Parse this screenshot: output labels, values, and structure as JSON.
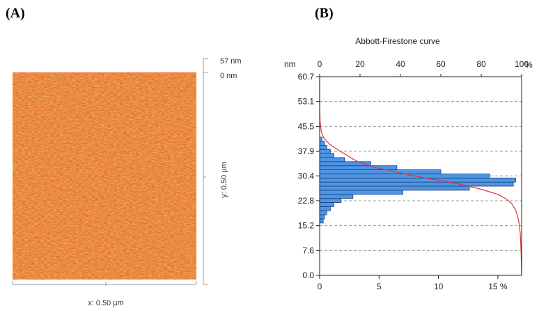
{
  "panels": {
    "a_label": "(A)",
    "b_label": "(B)"
  },
  "afm": {
    "scale_top": "57 nm",
    "scale_bottom": "0 nm",
    "y_label": "y: 0.50 µm",
    "x_label": "x: 0.50 µm",
    "color_base": "#e0661f"
  },
  "chart_data": {
    "type": "bar",
    "title": "Abbott-Firestone curve",
    "y_unit": "nm",
    "top_axis_unit": "%",
    "bottom_axis_unit": "%",
    "ylim": [
      0,
      60.7
    ],
    "y_ticks": [
      0.0,
      7.6,
      15.2,
      22.8,
      30.4,
      37.9,
      45.5,
      53.1,
      60.7
    ],
    "y_tick_labels": [
      "0.0",
      "7.6",
      "15.2",
      "22.8",
      "30.4",
      "37.9",
      "45.5",
      "53.1",
      "60.7"
    ],
    "top_ticks": [
      0,
      20,
      40,
      60,
      80,
      100
    ],
    "top_tick_labels": [
      "0",
      "20",
      "40",
      "60",
      "80",
      "100"
    ],
    "bottom_xlim": [
      0,
      17
    ],
    "bottom_ticks": [
      0,
      5,
      10,
      15
    ],
    "bottom_tick_labels": [
      "0",
      "5",
      "10",
      "15 %"
    ],
    "grid": "horizontal dashed",
    "histogram": {
      "bin_width": 1.25,
      "bins": [
        {
          "y0": 16.0,
          "value": 0.3
        },
        {
          "y0": 17.25,
          "value": 0.4
        },
        {
          "y0": 18.5,
          "value": 0.6
        },
        {
          "y0": 19.75,
          "value": 0.9
        },
        {
          "y0": 21.0,
          "value": 1.2
        },
        {
          "y0": 22.25,
          "value": 1.8
        },
        {
          "y0": 23.5,
          "value": 2.8
        },
        {
          "y0": 24.75,
          "value": 7.0
        },
        {
          "y0": 26.0,
          "value": 12.6
        },
        {
          "y0": 27.25,
          "value": 16.3
        },
        {
          "y0": 28.5,
          "value": 16.5
        },
        {
          "y0": 29.75,
          "value": 14.3
        },
        {
          "y0": 31.0,
          "value": 10.2
        },
        {
          "y0": 32.25,
          "value": 6.5
        },
        {
          "y0": 33.5,
          "value": 4.3
        },
        {
          "y0": 34.75,
          "value": 2.1
        },
        {
          "y0": 36.0,
          "value": 1.2
        },
        {
          "y0": 37.25,
          "value": 0.9
        },
        {
          "y0": 38.5,
          "value": 0.6
        },
        {
          "y0": 39.75,
          "value": 0.4
        },
        {
          "y0": 41.0,
          "value": 0.2
        }
      ],
      "color": "#4f95e6",
      "edge_color": "#1b3f78"
    },
    "curve": {
      "color": "#d33a3a",
      "points": [
        [
          0,
          60.7
        ],
        [
          0,
          52
        ],
        [
          0.2,
          47
        ],
        [
          0.8,
          44
        ],
        [
          2,
          42
        ],
        [
          5,
          40
        ],
        [
          10,
          38
        ],
        [
          18,
          35
        ],
        [
          27,
          33
        ],
        [
          38,
          31.5
        ],
        [
          50,
          30
        ],
        [
          62,
          28.8
        ],
        [
          72,
          27.5
        ],
        [
          80,
          26.3
        ],
        [
          88,
          24.8
        ],
        [
          92,
          23.5
        ],
        [
          95,
          22
        ],
        [
          97,
          20
        ],
        [
          98.5,
          17
        ],
        [
          99.3,
          13
        ],
        [
          99.7,
          8
        ],
        [
          99.9,
          3
        ],
        [
          100,
          0
        ]
      ]
    }
  }
}
